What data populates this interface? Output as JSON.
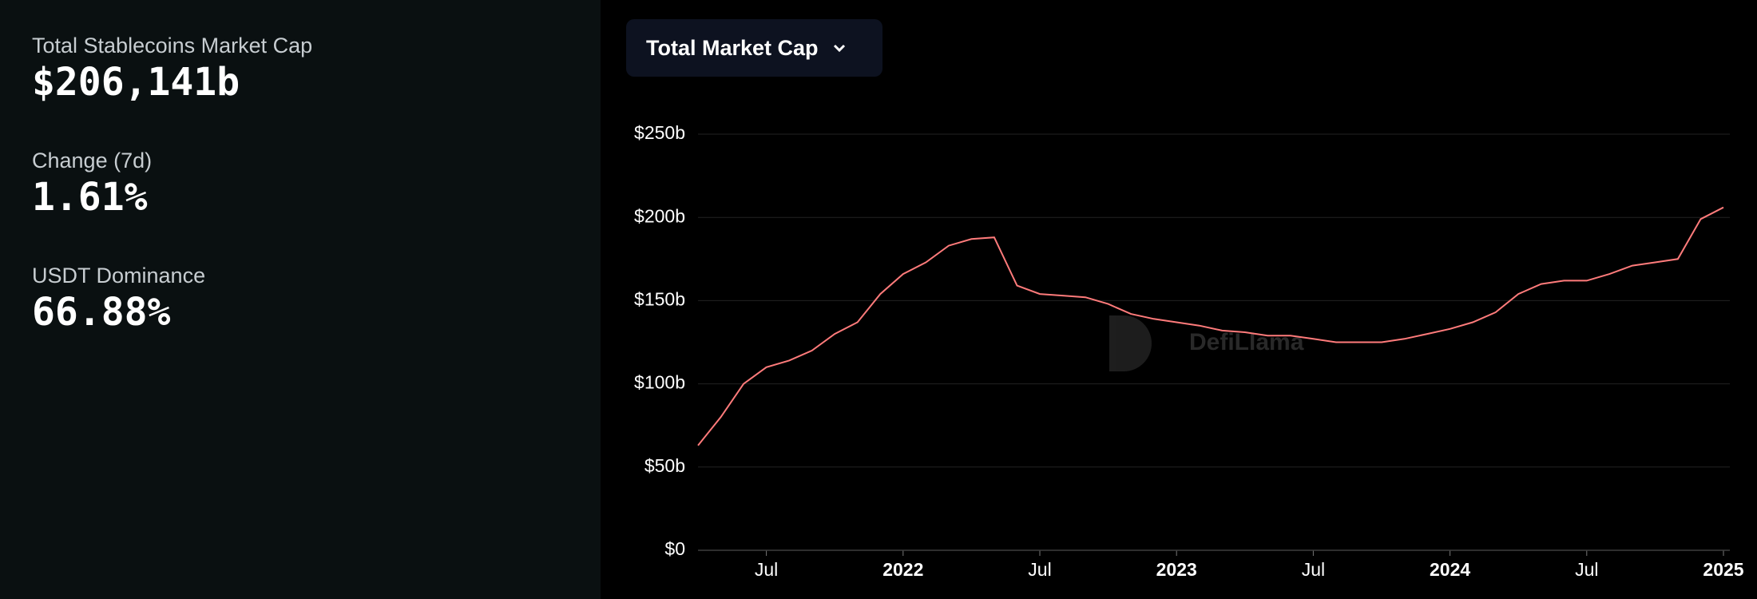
{
  "stats": [
    {
      "label": "Total Stablecoins Market Cap",
      "value": "$206,141b"
    },
    {
      "label": "Change (7d)",
      "value": "1.61%"
    },
    {
      "label": "USDT Dominance",
      "value": "66.88%"
    }
  ],
  "dropdown": "Total Market Cap",
  "watermark": "DefiLlama",
  "chart_data": {
    "type": "line",
    "color": "#ff7b7b",
    "grid": true,
    "x": [
      "2021-04",
      "2021-05",
      "2021-06",
      "2021-07",
      "2021-08",
      "2021-09",
      "2021-10",
      "2021-11",
      "2021-12",
      "2022-01",
      "2022-02",
      "2022-03",
      "2022-04",
      "2022-05",
      "2022-06",
      "2022-07",
      "2022-08",
      "2022-09",
      "2022-10",
      "2022-11",
      "2022-12",
      "2023-01",
      "2023-02",
      "2023-03",
      "2023-04",
      "2023-05",
      "2023-06",
      "2023-07",
      "2023-08",
      "2023-09",
      "2023-10",
      "2023-11",
      "2023-12",
      "2024-01",
      "2024-02",
      "2024-03",
      "2024-04",
      "2024-05",
      "2024-06",
      "2024-07",
      "2024-08",
      "2024-09",
      "2024-10",
      "2024-11",
      "2024-12",
      "2025-01"
    ],
    "values": [
      63,
      80,
      100,
      110,
      114,
      120,
      130,
      137,
      154,
      166,
      173,
      183,
      187,
      188,
      159,
      154,
      153,
      152,
      148,
      142,
      139,
      137,
      135,
      132,
      131,
      129,
      129,
      127,
      125,
      125,
      125,
      127,
      130,
      133,
      137,
      143,
      154,
      160,
      162,
      162,
      166,
      171,
      173,
      175,
      199,
      206
    ],
    "xlim": [
      "2021-04",
      "2025-01"
    ],
    "xticks": [
      {
        "value": "2021-07",
        "label": "Jul"
      },
      {
        "value": "2022-01",
        "label": "2022"
      },
      {
        "value": "2022-07",
        "label": "Jul"
      },
      {
        "value": "2023-01",
        "label": "2023"
      },
      {
        "value": "2023-07",
        "label": "Jul"
      },
      {
        "value": "2024-01",
        "label": "2024"
      },
      {
        "value": "2024-07",
        "label": "Jul"
      },
      {
        "value": "2025-01",
        "label": "2025"
      }
    ],
    "ylim": [
      0,
      250
    ],
    "yticks": [
      {
        "value": 0,
        "label": "$0"
      },
      {
        "value": 50,
        "label": "$50b"
      },
      {
        "value": 100,
        "label": "$100b"
      },
      {
        "value": 150,
        "label": "$150b"
      },
      {
        "value": 200,
        "label": "$200b"
      },
      {
        "value": 250,
        "label": "$250b"
      }
    ]
  }
}
